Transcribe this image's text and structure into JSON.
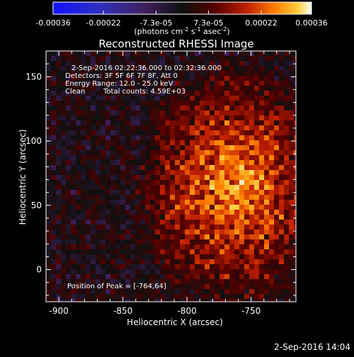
{
  "colorbar": {
    "ticks": [
      "-0.00036",
      "-0.00022",
      "-7.3e-05",
      "7.3e-05",
      "0.00022",
      "0.00036"
    ],
    "tick_values": [
      -0.00036,
      -0.00022,
      -7.3e-05,
      7.3e-05,
      0.00022,
      0.00036
    ],
    "range": [
      -0.00036,
      0.00036
    ],
    "units_prefix": "(photons cm",
    "units_sup1": "-2",
    "units_mid1": " s",
    "units_sup2": "-1",
    "units_mid2": " asec",
    "units_sup3": "-2",
    "units_suffix": ")",
    "colors": [
      "#1010ff",
      "#3030c0",
      "#402060",
      "#101010",
      "#500000",
      "#c02000",
      "#ff8000",
      "#ffd040",
      "#ffffff"
    ]
  },
  "chart_data": {
    "type": "heatmap",
    "title": "Reconstructed RHESSI Image",
    "xlabel": "Heliocentric X (arcsec)",
    "ylabel": "Heliocentric Y (arcsec)",
    "xlim": [
      -910,
      -715
    ],
    "ylim": [
      -25,
      170
    ],
    "xticks": [
      -900,
      -850,
      -800,
      -750
    ],
    "yticks": [
      0,
      50,
      100,
      150
    ],
    "annotations": [
      "2-Sep-2016 02:22:36.000 to 02:32:36.000",
      "Detectors: 3F 5F 6F 7F 8F, Att 0",
      "Energy Range: 12.0 - 25.0 keV",
      "Clean",
      "Total counts: 4.59E+03"
    ],
    "peak_label": "Position of Peak = [-764,64]",
    "peak": [
      -764,
      64
    ]
  },
  "footer": {
    "timestamp": "2-Sep-2016 14:04"
  }
}
